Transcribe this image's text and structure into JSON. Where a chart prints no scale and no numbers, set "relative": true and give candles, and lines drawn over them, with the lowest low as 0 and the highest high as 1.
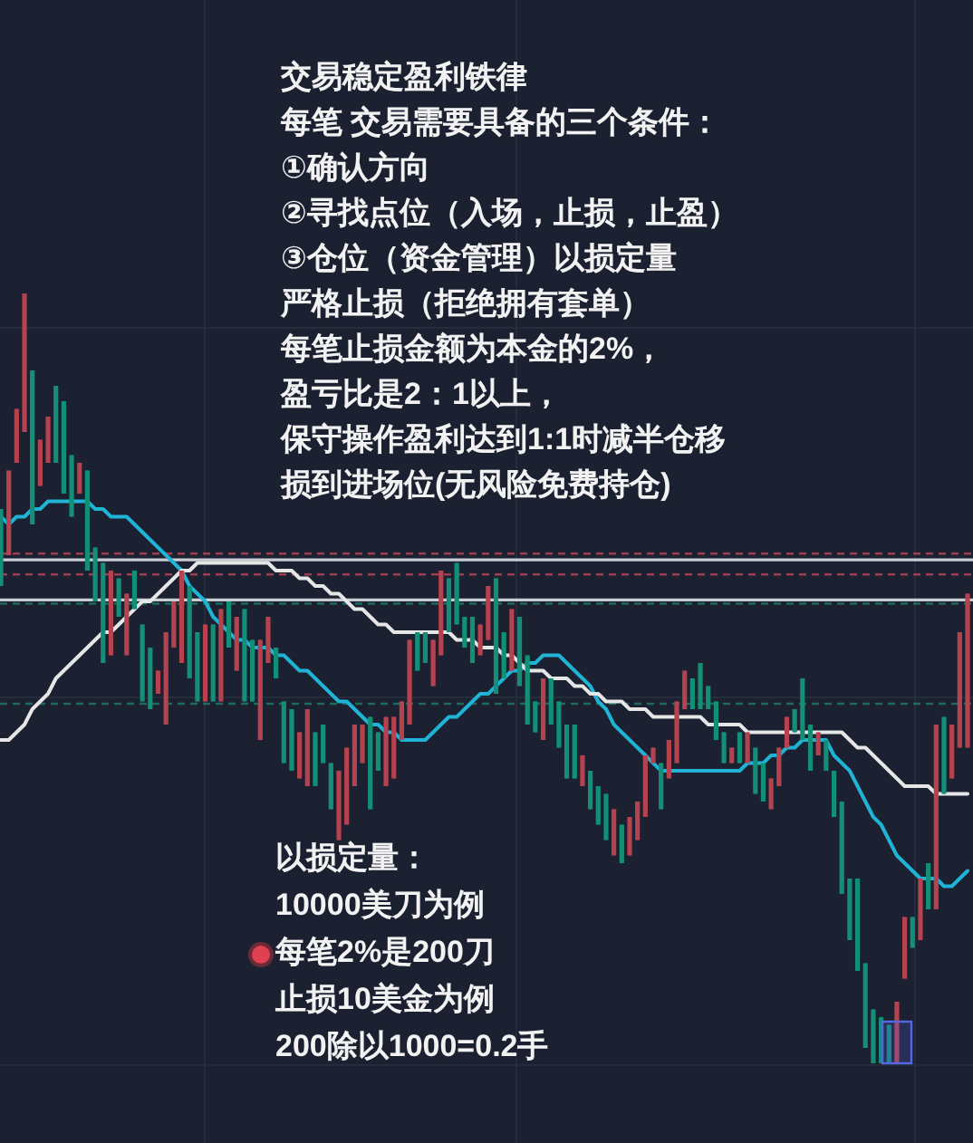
{
  "chart_data": {
    "type": "candlestick",
    "relative": true,
    "grid": true,
    "title": "交易稳定盈利铁律",
    "annotations": [
      "每笔 交易需要具备的三个条件：",
      "①确认方向",
      "②寻找点位（入场，止损，止盈）",
      "③仓位（资金管理）以损定量",
      "严格止损（拒绝拥有套单）",
      "每笔止损金额为本金的2%，",
      "盈亏比是2：1以上，",
      "保守操作盈利达到1:1时减半仓移",
      "损到进场位(无风险免费持仓)",
      "以损定量：",
      "10000美刀为例",
      "每笔2%是200刀",
      "止损10美金为例",
      "200除以1000=0.2手"
    ],
    "categories": [
      null,
      null,
      null,
      null,
      null,
      null,
      null,
      null,
      null,
      null,
      null,
      null,
      null,
      null,
      null,
      null,
      null,
      null,
      null,
      null,
      null,
      null,
      null,
      null,
      null,
      null,
      null,
      null,
      null,
      null,
      null,
      null,
      null,
      null,
      null,
      null,
      null,
      null,
      null,
      null,
      null,
      null,
      null,
      null,
      null,
      null,
      null,
      null,
      null,
      null,
      null,
      null,
      null,
      null,
      null,
      null,
      null,
      null,
      null,
      null,
      null,
      null,
      null,
      null,
      null,
      null,
      null,
      null,
      null,
      null,
      null,
      null,
      null,
      null,
      null,
      null,
      null,
      null,
      null,
      null,
      null,
      null,
      null,
      null,
      null,
      null,
      null,
      null,
      null,
      null,
      null,
      null,
      null,
      null,
      null,
      null,
      null,
      null,
      null,
      null,
      null,
      null,
      null,
      null,
      null,
      null,
      null,
      null,
      null,
      null,
      null,
      null,
      null,
      null,
      null,
      null,
      null,
      null,
      null,
      null,
      null,
      null,
      null,
      null
    ],
    "ohlc": [
      [
        0.72,
        0.72,
        0.62,
        0.62
      ],
      [
        0.66,
        0.77,
        0.66,
        0.77
      ],
      [
        0.78,
        0.85,
        0.78,
        0.85
      ],
      [
        0.82,
        1,
        0.82,
        1
      ],
      [
        0.9,
        0.9,
        0.7,
        0.7
      ],
      [
        0.75,
        0.81,
        0.75,
        0.81
      ],
      [
        0.78,
        0.84,
        0.78,
        0.84
      ],
      [
        0.88,
        0.88,
        0.78,
        0.78
      ],
      [
        0.86,
        0.86,
        0.74,
        0.74
      ],
      [
        0.79,
        0.79,
        0.71,
        0.71
      ],
      [
        0.74,
        0.78,
        0.74,
        0.78
      ],
      [
        0.77,
        0.77,
        0.64,
        0.64
      ],
      [
        0.67,
        0.67,
        0.6,
        0.6
      ],
      [
        0.65,
        0.65,
        0.52,
        0.52
      ],
      [
        0.53,
        0.64,
        0.53,
        0.64
      ],
      [
        0.63,
        0.63,
        0.58,
        0.58
      ],
      [
        0.53,
        0.61,
        0.53,
        0.61
      ],
      [
        0.64,
        0.64,
        0.59,
        0.59
      ],
      [
        0.57,
        0.57,
        0.47,
        0.47
      ],
      [
        0.54,
        0.54,
        0.46,
        0.46
      ],
      [
        0.48,
        0.51,
        0.48,
        0.51
      ],
      [
        0.44,
        0.56,
        0.44,
        0.56
      ],
      [
        0.54,
        0.6,
        0.54,
        0.6
      ],
      [
        0.52,
        0.64,
        0.52,
        0.64
      ],
      [
        0.62,
        0.62,
        0.5,
        0.5
      ],
      [
        0.56,
        0.56,
        0.47,
        0.47
      ],
      [
        0.47,
        0.57,
        0.47,
        0.57
      ],
      [
        0.57,
        0.57,
        0.47,
        0.47
      ],
      [
        0.47,
        0.59,
        0.47,
        0.59
      ],
      [
        0.6,
        0.6,
        0.54,
        0.54
      ],
      [
        0.51,
        0.58,
        0.51,
        0.58
      ],
      [
        0.59,
        0.59,
        0.47,
        0.47
      ],
      [
        0.55,
        0.55,
        0.47,
        0.47
      ],
      [
        0.42,
        0.55,
        0.42,
        0.55
      ],
      [
        0.52,
        0.58,
        0.52,
        0.58
      ],
      [
        0.54,
        0.54,
        0.5,
        0.5
      ],
      [
        0.47,
        0.47,
        0.39,
        0.39
      ],
      [
        0.46,
        0.46,
        0.38,
        0.38
      ],
      [
        0.37,
        0.43,
        0.37,
        0.43
      ],
      [
        0.36,
        0.46,
        0.36,
        0.46
      ],
      [
        0.43,
        0.43,
        0.36,
        0.36
      ],
      [
        0.44,
        0.44,
        0.39,
        0.39
      ],
      [
        0.39,
        0.39,
        0.33,
        0.33
      ],
      [
        0.29,
        0.38,
        0.29,
        0.38
      ],
      [
        0.31,
        0.41,
        0.31,
        0.41
      ],
      [
        0.36,
        0.44,
        0.36,
        0.44
      ],
      [
        0.39,
        0.44,
        0.39,
        0.44
      ],
      [
        0.45,
        0.45,
        0.33,
        0.33
      ],
      [
        0.43,
        0.43,
        0.38,
        0.38
      ],
      [
        0.36,
        0.45,
        0.36,
        0.45
      ],
      [
        0.37,
        0.45,
        0.37,
        0.45
      ],
      [
        0.42,
        0.47,
        0.42,
        0.47
      ],
      [
        0.44,
        0.55,
        0.44,
        0.55
      ],
      [
        0.56,
        0.56,
        0.51,
        0.51
      ],
      [
        0.56,
        0.56,
        0.52,
        0.52
      ],
      [
        0.49,
        0.55,
        0.49,
        0.55
      ],
      [
        0.53,
        0.64,
        0.53,
        0.64
      ],
      [
        0.63,
        0.63,
        0.56,
        0.56
      ],
      [
        0.65,
        0.65,
        0.57,
        0.57
      ],
      [
        0.58,
        0.58,
        0.54,
        0.54
      ],
      [
        0.58,
        0.58,
        0.52,
        0.52
      ],
      [
        0.53,
        0.57,
        0.53,
        0.57
      ],
      [
        0.55,
        0.62,
        0.55,
        0.62
      ],
      [
        0.63,
        0.63,
        0.48,
        0.48
      ],
      [
        0.56,
        0.56,
        0.5,
        0.5
      ],
      [
        0.51,
        0.59,
        0.51,
        0.59
      ],
      [
        0.58,
        0.58,
        0.49,
        0.49
      ],
      [
        0.53,
        0.53,
        0.44,
        0.44
      ],
      [
        0.47,
        0.47,
        0.43,
        0.43
      ],
      [
        0.42,
        0.5,
        0.42,
        0.5
      ],
      [
        0.5,
        0.5,
        0.44,
        0.44
      ],
      [
        0.47,
        0.47,
        0.41,
        0.41
      ],
      [
        0.44,
        0.44,
        0.37,
        0.37
      ],
      [
        0.44,
        0.44,
        0.37,
        0.37
      ],
      [
        0.36,
        0.4,
        0.36,
        0.4
      ],
      [
        0.38,
        0.38,
        0.33,
        0.33
      ],
      [
        0.36,
        0.36,
        0.31,
        0.31
      ],
      [
        0.35,
        0.35,
        0.29,
        0.29
      ],
      [
        0.27,
        0.33,
        0.27,
        0.33
      ],
      [
        0.31,
        0.31,
        0.26,
        0.26
      ],
      [
        0.27,
        0.32,
        0.27,
        0.32
      ],
      [
        0.29,
        0.34,
        0.29,
        0.34
      ],
      [
        0.32,
        0.4,
        0.32,
        0.4
      ],
      [
        0.39,
        0.41,
        0.39,
        0.41
      ],
      [
        0.39,
        0.39,
        0.33,
        0.33
      ],
      [
        0.37,
        0.42,
        0.37,
        0.42
      ],
      [
        0.39,
        0.47,
        0.39,
        0.47
      ],
      [
        0.46,
        0.51,
        0.46,
        0.51
      ],
      [
        0.5,
        0.5,
        0.46,
        0.46
      ],
      [
        0.52,
        0.52,
        0.46,
        0.46
      ],
      [
        0.49,
        0.49,
        0.46,
        0.46
      ],
      [
        0.47,
        0.47,
        0.42,
        0.42
      ],
      [
        0.43,
        0.43,
        0.39,
        0.39
      ],
      [
        0.39,
        0.41,
        0.39,
        0.41
      ],
      [
        0.43,
        0.43,
        0.39,
        0.39
      ],
      [
        0.39,
        0.43,
        0.39,
        0.43
      ],
      [
        0.41,
        0.41,
        0.35,
        0.35
      ],
      [
        0.39,
        0.39,
        0.34,
        0.34
      ],
      [
        0.33,
        0.37,
        0.33,
        0.37
      ],
      [
        0.36,
        0.41,
        0.36,
        0.41
      ],
      [
        0.41,
        0.45,
        0.41,
        0.45
      ],
      [
        0.46,
        0.46,
        0.43,
        0.43
      ],
      [
        0.5,
        0.5,
        0.42,
        0.42
      ],
      [
        0.44,
        0.44,
        0.38,
        0.38
      ],
      [
        0.4,
        0.43,
        0.4,
        0.43
      ],
      [
        0.42,
        0.42,
        0.38,
        0.38
      ],
      [
        0.38,
        0.38,
        0.32,
        0.32
      ],
      [
        0.34,
        0.34,
        0.22,
        0.22
      ],
      [
        0.24,
        0.24,
        0.16,
        0.16
      ],
      [
        0.24,
        0.24,
        0.12,
        0.12
      ],
      [
        0.13,
        0.13,
        0.02,
        0.02
      ],
      [
        0.07,
        0.07,
        0,
        0
      ],
      [
        0.06,
        0.06,
        0,
        0
      ],
      [
        0.05,
        0.05,
        0,
        0
      ],
      [
        0,
        0.08,
        0,
        0.08
      ],
      [
        0.11,
        0.19,
        0.11,
        0.19
      ],
      [
        0.19,
        0.19,
        0.15,
        0.15
      ],
      [
        0.16,
        0.24,
        0.16,
        0.24
      ],
      [
        0.26,
        0.26,
        0.2,
        0.2
      ],
      [
        0.2,
        0.44,
        0.2,
        0.44
      ],
      [
        0.45,
        0.45,
        0.35,
        0.35
      ],
      [
        0.37,
        0.44,
        0.37,
        0.44
      ],
      [
        0.41,
        0.56,
        0.41,
        0.56
      ],
      [
        0.41,
        0.61,
        0.41,
        0.61
      ]
    ],
    "colors": [
      "#138f78",
      "#b4434f",
      "#b4434f",
      "#b4434f",
      "#138f78",
      "#b4434f",
      "#b4434f",
      "#138f78",
      "#138f78",
      "#138f78",
      "#b4434f",
      "#138f78",
      "#138f78",
      "#138f78",
      "#b4434f",
      "#138f78",
      "#b4434f",
      "#138f78",
      "#138f78",
      "#138f78",
      "#b4434f",
      "#b4434f",
      "#b4434f",
      "#b4434f",
      "#138f78",
      "#138f78",
      "#b4434f",
      "#138f78",
      "#b4434f",
      "#138f78",
      "#b4434f",
      "#138f78",
      "#138f78",
      "#b4434f",
      "#b4434f",
      "#138f78",
      "#138f78",
      "#138f78",
      "#b4434f",
      "#b4434f",
      "#138f78",
      "#138f78",
      "#138f78",
      "#b4434f",
      "#b4434f",
      "#b4434f",
      "#b4434f",
      "#138f78",
      "#138f78",
      "#b4434f",
      "#b4434f",
      "#b4434f",
      "#b4434f",
      "#138f78",
      "#138f78",
      "#b4434f",
      "#b4434f",
      "#138f78",
      "#138f78",
      "#138f78",
      "#138f78",
      "#b4434f",
      "#b4434f",
      "#138f78",
      "#138f78",
      "#b4434f",
      "#138f78",
      "#138f78",
      "#138f78",
      "#b4434f",
      "#138f78",
      "#138f78",
      "#138f78",
      "#138f78",
      "#b4434f",
      "#138f78",
      "#138f78",
      "#138f78",
      "#b4434f",
      "#138f78",
      "#b4434f",
      "#b4434f",
      "#b4434f",
      "#b4434f",
      "#138f78",
      "#b4434f",
      "#b4434f",
      "#b4434f",
      "#138f78",
      "#138f78",
      "#138f78",
      "#138f78",
      "#138f78",
      "#b4434f",
      "#138f78",
      "#b4434f",
      "#138f78",
      "#138f78",
      "#b4434f",
      "#b4434f",
      "#b4434f",
      "#138f78",
      "#138f78",
      "#138f78",
      "#b4434f",
      "#138f78",
      "#138f78",
      "#138f78",
      "#138f78",
      "#138f78",
      "#138f78",
      "#138f78",
      "#138f78",
      "#138f78",
      "#b4434f",
      "#b4434f",
      "#138f78",
      "#b4434f",
      "#138f78",
      "#b4434f",
      "#138f78",
      "#b4434f",
      "#b4434f",
      "#b4434f"
    ],
    "series": [
      {
        "type": "line",
        "color": "#1fb3d6",
        "values": [
          0.71,
          0.7,
          0.71,
          0.71,
          0.72,
          0.72,
          0.73,
          0.73,
          0.73,
          0.73,
          0.73,
          0.73,
          0.72,
          0.72,
          0.71,
          0.71,
          0.71,
          0.7,
          0.69,
          0.68,
          0.67,
          0.66,
          0.65,
          0.64,
          0.62,
          0.61,
          0.6,
          0.58,
          0.57,
          0.56,
          0.55,
          0.55,
          0.54,
          0.54,
          0.54,
          0.53,
          0.53,
          0.52,
          0.51,
          0.51,
          0.5,
          0.49,
          0.48,
          0.47,
          0.47,
          0.46,
          0.45,
          0.44,
          0.44,
          0.43,
          0.43,
          0.42,
          0.42,
          0.42,
          0.42,
          0.43,
          0.44,
          0.45,
          0.45,
          0.46,
          0.47,
          0.48,
          0.48,
          0.49,
          0.5,
          0.51,
          0.51,
          0.52,
          0.52,
          0.53,
          0.53,
          0.53,
          0.52,
          0.51,
          0.5,
          0.49,
          0.47,
          0.46,
          0.44,
          0.43,
          0.42,
          0.41,
          0.4,
          0.39,
          0.38,
          0.38,
          0.38,
          0.38,
          0.38,
          0.38,
          0.38,
          0.38,
          0.38,
          0.38,
          0.38,
          0.39,
          0.39,
          0.39,
          0.4,
          0.4,
          0.41,
          0.41,
          0.42,
          0.42,
          0.42,
          0.42,
          0.4,
          0.39,
          0.38,
          0.36,
          0.34,
          0.32,
          0.31,
          0.29,
          0.27,
          0.26,
          0.25,
          0.24,
          0.24,
          0.24,
          0.23,
          0.23,
          0.24,
          0.25
        ]
      },
      {
        "type": "line",
        "color": "#e6e6e6",
        "values": [
          0.42,
          0.42,
          0.43,
          0.44,
          0.46,
          0.47,
          0.48,
          0.5,
          0.51,
          0.52,
          0.53,
          0.54,
          0.55,
          0.56,
          0.56,
          0.57,
          0.58,
          0.59,
          0.6,
          0.6,
          0.61,
          0.62,
          0.63,
          0.64,
          0.64,
          0.65,
          0.65,
          0.65,
          0.65,
          0.65,
          0.65,
          0.65,
          0.65,
          0.65,
          0.65,
          0.64,
          0.64,
          0.64,
          0.63,
          0.63,
          0.62,
          0.62,
          0.61,
          0.61,
          0.6,
          0.59,
          0.59,
          0.58,
          0.57,
          0.57,
          0.56,
          0.56,
          0.56,
          0.56,
          0.56,
          0.56,
          0.56,
          0.56,
          0.55,
          0.55,
          0.55,
          0.54,
          0.54,
          0.54,
          0.53,
          0.53,
          0.52,
          0.51,
          0.51,
          0.51,
          0.5,
          0.5,
          0.5,
          0.49,
          0.49,
          0.48,
          0.48,
          0.47,
          0.47,
          0.47,
          0.46,
          0.46,
          0.46,
          0.45,
          0.45,
          0.45,
          0.45,
          0.45,
          0.45,
          0.45,
          0.44,
          0.44,
          0.44,
          0.44,
          0.44,
          0.43,
          0.43,
          0.43,
          0.43,
          0.43,
          0.43,
          0.43,
          0.43,
          0.43,
          0.43,
          0.43,
          0.43,
          0.43,
          0.42,
          0.41,
          0.41,
          0.4,
          0.39,
          0.38,
          0.37,
          0.36,
          0.36,
          0.36,
          0.36,
          0.35,
          0.35,
          0.35,
          0.35,
          0.35
        ]
      }
    ],
    "ref_lines": [
      {
        "axis": "y",
        "value": 0.662,
        "color": "#9c3d50",
        "line_style": "dashed"
      },
      {
        "axis": "y",
        "value": 0.654,
        "color": "#c9ccd3",
        "line_style": "solid"
      },
      {
        "axis": "y",
        "value": 0.635,
        "color": "#9c3d50",
        "line_style": "dashed"
      },
      {
        "axis": "y",
        "value": 0.602,
        "color": "#c9ccd3",
        "line_style": "solid"
      },
      {
        "axis": "y",
        "value": 0.597,
        "color": "#1c6b5e",
        "line_style": "dashed"
      },
      {
        "axis": "y",
        "value": 0.467,
        "color": "#1c6b5e",
        "line_style": "dashed"
      }
    ]
  }
}
